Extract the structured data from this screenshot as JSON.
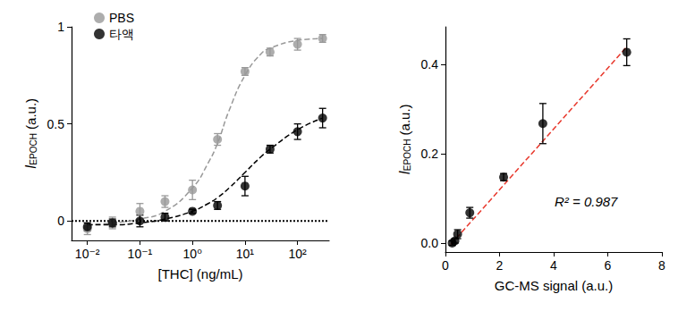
{
  "chart_data": [
    {
      "type": "scatter",
      "x_label": "[THC] (ng/mL)",
      "y_label": [
        "I",
        "EPOCH",
        " (a.u.)"
      ],
      "log": "x",
      "grid": false,
      "legend": "top-left",
      "xlim": [
        0.005,
        400
      ],
      "xticks": [
        {
          "value": 0.01,
          "label": "10⁻²"
        },
        {
          "value": 0.1,
          "label": "10⁻¹"
        },
        {
          "value": 1,
          "label": "10⁰"
        },
        {
          "value": 10,
          "label": "10¹"
        },
        {
          "value": 100,
          "label": "10²"
        }
      ],
      "ylim": [
        -0.1,
        1
      ],
      "yticks": [
        0,
        0.5,
        1
      ],
      "reference_lines": [
        {
          "y": 0,
          "line_style": "dotted",
          "color": "#000000"
        }
      ],
      "x": [
        0.01,
        0.03,
        0.1,
        0.3,
        1,
        3,
        10,
        30,
        100,
        300
      ],
      "series": [
        {
          "name": "PBS",
          "color": "#999999",
          "marker": "circle",
          "line_style": "dashed",
          "values": [
            -0.04,
            -0.01,
            0.05,
            0.1,
            0.16,
            0.42,
            0.77,
            0.87,
            0.91,
            0.94
          ],
          "errors": [
            0.03,
            0.03,
            0.04,
            0.03,
            0.05,
            0.03,
            0.02,
            0.02,
            0.03,
            0.02
          ],
          "fit": {
            "x": [
              0.01,
              0.03,
              0.1,
              0.3,
              1,
              2,
              3,
              5,
              10,
              20,
              30,
              100,
              300
            ],
            "values": [
              -0.02,
              -0.01,
              0.01,
              0.05,
              0.17,
              0.3,
              0.4,
              0.57,
              0.75,
              0.86,
              0.89,
              0.93,
              0.94
            ]
          }
        },
        {
          "name": "타액",
          "color": "#000000",
          "marker": "circle",
          "line_style": "dashed",
          "values": [
            -0.03,
            -0.01,
            0.0,
            0.02,
            0.05,
            0.08,
            0.18,
            0.37,
            0.46,
            0.53
          ],
          "errors": [
            0.02,
            0.02,
            0.03,
            0.02,
            0.01,
            0.02,
            0.05,
            0.02,
            0.04,
            0.05
          ],
          "fit": {
            "x": [
              0.01,
              0.03,
              0.1,
              0.3,
              1,
              2,
              3,
              5,
              10,
              20,
              30,
              100,
              300
            ],
            "values": [
              -0.02,
              -0.02,
              -0.01,
              0.01,
              0.05,
              0.09,
              0.12,
              0.17,
              0.25,
              0.33,
              0.37,
              0.47,
              0.53
            ]
          }
        }
      ]
    },
    {
      "type": "scatter",
      "x_label": "GC-MS signal (a.u.)",
      "y_label": [
        "I",
        "EPOCH",
        " (a.u.)"
      ],
      "grid": false,
      "xlim": [
        0,
        8
      ],
      "xticks": [
        0,
        2,
        4,
        6,
        8
      ],
      "ylim": [
        -0.02,
        0.485
      ],
      "yticks": [
        {
          "value": 0,
          "label": "0.0"
        },
        {
          "value": 0.2,
          "label": "0.2"
        },
        {
          "value": 0.4,
          "label": "0.4"
        }
      ],
      "series": [
        {
          "color": "#000000",
          "marker": "circle",
          "x": [
            0.25,
            0.35,
            0.45,
            0.9,
            2.15,
            3.6,
            6.7
          ],
          "values": [
            0.0,
            0.005,
            0.02,
            0.068,
            0.148,
            0.268,
            0.428
          ],
          "errors": [
            0.005,
            0.005,
            0.01,
            0.012,
            0.008,
            0.045,
            0.03
          ]
        }
      ],
      "fit_line": {
        "x": [
          0.2,
          6.7
        ],
        "values": [
          -0.003,
          0.44
        ],
        "color": "#e8382c",
        "line_style": "dashed"
      },
      "annotations": [
        "R² = 0.987"
      ]
    }
  ]
}
